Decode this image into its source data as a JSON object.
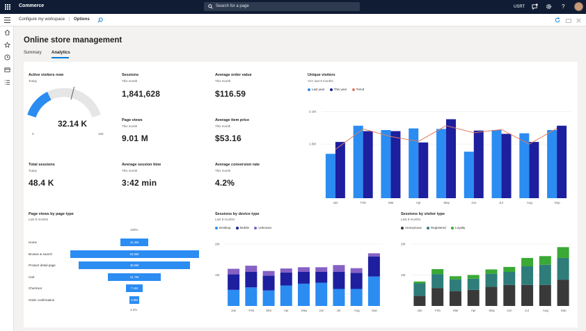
{
  "topbar": {
    "app_name": "Commerce",
    "search_placeholder": "Search for a page",
    "user": "USRT"
  },
  "breadcrumb": {
    "workspace": "Configure my workspace",
    "separator": "|",
    "current": "Options"
  },
  "page": {
    "title": "Online store management"
  },
  "tabs": [
    {
      "label": "Summary"
    },
    {
      "label": "Analytics"
    }
  ],
  "kpis": {
    "active_visitors": {
      "title": "Active visitors now",
      "subtitle": "Today",
      "value": "32.14 K",
      "gauge_min": "0",
      "gauge_mark": "60",
      "gauge_max": "100",
      "gauge_fraction": 0.3214
    },
    "sessions": {
      "title": "Sessions",
      "subtitle": "This month",
      "value": "1,841,628"
    },
    "avg_order": {
      "title": "Average order value",
      "subtitle": "This month",
      "value": "$116.59"
    },
    "page_views": {
      "title": "Page views",
      "subtitle": "This month",
      "value": "9.01 M"
    },
    "avg_item": {
      "title": "Average item price",
      "subtitle": "This month",
      "value": "$53.16"
    },
    "total_sessions": {
      "title": "Total sessions",
      "subtitle": "Today",
      "value": "48.4 K"
    },
    "avg_session": {
      "title": "Average session time",
      "subtitle": "This month",
      "value": "3:42 min"
    },
    "conv_rate": {
      "title": "Average conversion rate",
      "subtitle": "This month",
      "value": "4.2%"
    }
  },
  "colors": {
    "light_blue": "#2b8cf2",
    "dark_blue": "#1d1f9f",
    "trend": "#e07b5b",
    "purple": "#8661c5",
    "anon": "#393939",
    "registered": "#2e7d7a",
    "loyalty": "#3aa935",
    "accent": "#0078d4"
  },
  "chart_data": [
    {
      "type": "bar",
      "title": "Unique visitors",
      "subtitle": "YoY, last 9 months",
      "categories": [
        "Jan",
        "Feb",
        "Mar",
        "Apr",
        "May",
        "Jun",
        "Jul",
        "Aug",
        "Sep"
      ],
      "series": [
        {
          "name": "Last year",
          "values": [
            1.32,
            1.84,
            1.76,
            1.79,
            1.78,
            1.36,
            1.76,
            1.7,
            1.76
          ]
        },
        {
          "name": "This year",
          "values": [
            1.54,
            1.74,
            1.74,
            1.53,
            1.96,
            1.75,
            1.69,
            1.54,
            1.84
          ]
        },
        {
          "name": "Trend",
          "values": [
            1.4,
            1.78,
            1.64,
            1.55,
            1.84,
            1.71,
            1.77,
            1.5,
            1.79
          ]
        }
      ],
      "ytick_labels": [
        "2.1M",
        "1.5M"
      ],
      "ytick_values": [
        2.1,
        1.5
      ],
      "ylim": [
        0.5,
        2.3
      ]
    },
    {
      "type": "bar",
      "title": "Page views by page type",
      "subtitle": "Last 9 months",
      "top_label": "100%",
      "bottom_label": "4.2%",
      "categories": [
        "Home",
        "Browse & search",
        "Product detail page",
        "Cart",
        "Checkout",
        "Order confirmation"
      ],
      "values": [
        11.4,
        52.6,
        45.5,
        21.7,
        7.1,
        3.9
      ],
      "value_labels": [
        "11.4M",
        "52.6M",
        "45.5M",
        "21.7M",
        "7.1M",
        "3.9M"
      ]
    },
    {
      "type": "bar",
      "title": "Sessions by device type",
      "subtitle": "Last 9 months",
      "categories": [
        "Jan",
        "Feb",
        "Mar",
        "Apr",
        "May",
        "Jun",
        "Jul",
        "Aug",
        "Sep"
      ],
      "series": [
        {
          "name": "Desktop",
          "values": [
            0.52,
            0.6,
            0.5,
            0.66,
            0.72,
            0.75,
            0.55,
            0.55,
            0.95
          ]
        },
        {
          "name": "Mobile",
          "values": [
            0.5,
            0.5,
            0.48,
            0.42,
            0.38,
            0.35,
            0.55,
            0.52,
            0.65
          ]
        },
        {
          "name": "Unknown",
          "values": [
            0.18,
            0.2,
            0.15,
            0.13,
            0.15,
            0.15,
            0.22,
            0.15,
            0.1
          ]
        }
      ],
      "ytick_labels": [
        "2M",
        "1M"
      ],
      "ytick_values": [
        2,
        1
      ],
      "ylim": [
        0,
        2.2
      ]
    },
    {
      "type": "bar",
      "title": "Sessions by visitor type",
      "subtitle": "Last 9 months",
      "categories": [
        "Jan",
        "Feb",
        "Mar",
        "Apr",
        "May",
        "Jun",
        "Jul",
        "Aug",
        "Sep"
      ],
      "series": [
        {
          "name": "Anonymous",
          "values": [
            0.33,
            0.58,
            0.48,
            0.52,
            0.62,
            0.68,
            0.68,
            0.68,
            0.85
          ]
        },
        {
          "name": "Registered",
          "values": [
            0.4,
            0.45,
            0.38,
            0.36,
            0.42,
            0.42,
            0.6,
            0.65,
            0.7
          ]
        },
        {
          "name": "Loyalty",
          "values": [
            0.06,
            0.16,
            0.1,
            0.12,
            0.14,
            0.16,
            0.27,
            0.28,
            0.35
          ]
        }
      ],
      "ytick_labels": [
        "2M",
        "1M"
      ],
      "ytick_values": [
        2,
        1
      ],
      "ylim": [
        0,
        2.2
      ]
    }
  ]
}
